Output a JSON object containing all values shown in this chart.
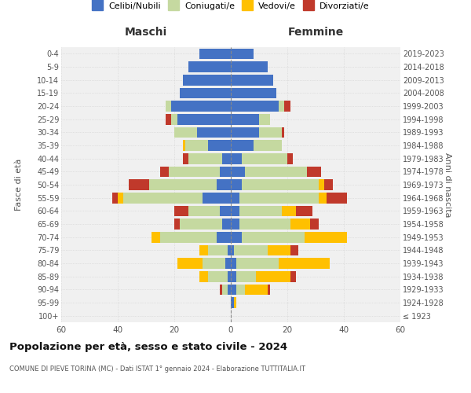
{
  "age_groups": [
    "100+",
    "95-99",
    "90-94",
    "85-89",
    "80-84",
    "75-79",
    "70-74",
    "65-69",
    "60-64",
    "55-59",
    "50-54",
    "45-49",
    "40-44",
    "35-39",
    "30-34",
    "25-29",
    "20-24",
    "15-19",
    "10-14",
    "5-9",
    "0-4"
  ],
  "birth_years": [
    "≤ 1923",
    "1924-1928",
    "1929-1933",
    "1934-1938",
    "1939-1943",
    "1944-1948",
    "1949-1953",
    "1954-1958",
    "1959-1963",
    "1964-1968",
    "1969-1973",
    "1974-1978",
    "1979-1983",
    "1984-1988",
    "1989-1993",
    "1994-1998",
    "1999-2003",
    "2004-2008",
    "2009-2013",
    "2014-2018",
    "2019-2023"
  ],
  "maschi": {
    "celibi": [
      0,
      0,
      1,
      1,
      2,
      1,
      5,
      3,
      4,
      10,
      5,
      4,
      3,
      8,
      12,
      19,
      21,
      18,
      17,
      15,
      11
    ],
    "coniugati": [
      0,
      0,
      2,
      7,
      8,
      7,
      20,
      15,
      11,
      28,
      24,
      18,
      12,
      8,
      8,
      2,
      2,
      0,
      0,
      0,
      0
    ],
    "vedovi": [
      0,
      0,
      0,
      3,
      9,
      3,
      3,
      0,
      0,
      2,
      0,
      0,
      0,
      1,
      0,
      0,
      0,
      0,
      0,
      0,
      0
    ],
    "divorziati": [
      0,
      0,
      1,
      0,
      0,
      0,
      0,
      2,
      5,
      2,
      7,
      3,
      2,
      0,
      0,
      2,
      0,
      0,
      0,
      0,
      0
    ]
  },
  "femmine": {
    "nubili": [
      0,
      1,
      2,
      2,
      2,
      1,
      4,
      3,
      3,
      3,
      4,
      5,
      4,
      8,
      10,
      10,
      17,
      16,
      15,
      13,
      8
    ],
    "coniugate": [
      0,
      0,
      3,
      7,
      15,
      12,
      22,
      18,
      15,
      28,
      27,
      22,
      16,
      10,
      8,
      4,
      2,
      0,
      0,
      0,
      0
    ],
    "vedove": [
      0,
      1,
      8,
      12,
      18,
      8,
      15,
      7,
      5,
      3,
      2,
      0,
      0,
      0,
      0,
      0,
      0,
      0,
      0,
      0,
      0
    ],
    "divorziate": [
      0,
      0,
      1,
      2,
      0,
      3,
      0,
      3,
      6,
      7,
      3,
      5,
      2,
      0,
      1,
      0,
      2,
      0,
      0,
      0,
      0
    ]
  },
  "colors": {
    "celibi": "#4472c4",
    "coniugati": "#c5d9a0",
    "vedovi": "#ffc000",
    "divorziati": "#c0392b"
  },
  "title": "Popolazione per età, sesso e stato civile - 2024",
  "subtitle": "COMUNE DI PIEVE TORINA (MC) - Dati ISTAT 1° gennaio 2024 - Elaborazione TUTTITALIA.IT",
  "xlabel_left": "Maschi",
  "xlabel_right": "Femmine",
  "ylabel_left": "Fasce di età",
  "ylabel_right": "Anni di nascita",
  "xlim": 60,
  "legend_labels": [
    "Celibi/Nubili",
    "Coniugati/e",
    "Vedovi/e",
    "Divorziati/e"
  ],
  "background_color": "#ffffff",
  "plot_bg": "#f0f0f0",
  "grid_color": "#cccccc"
}
